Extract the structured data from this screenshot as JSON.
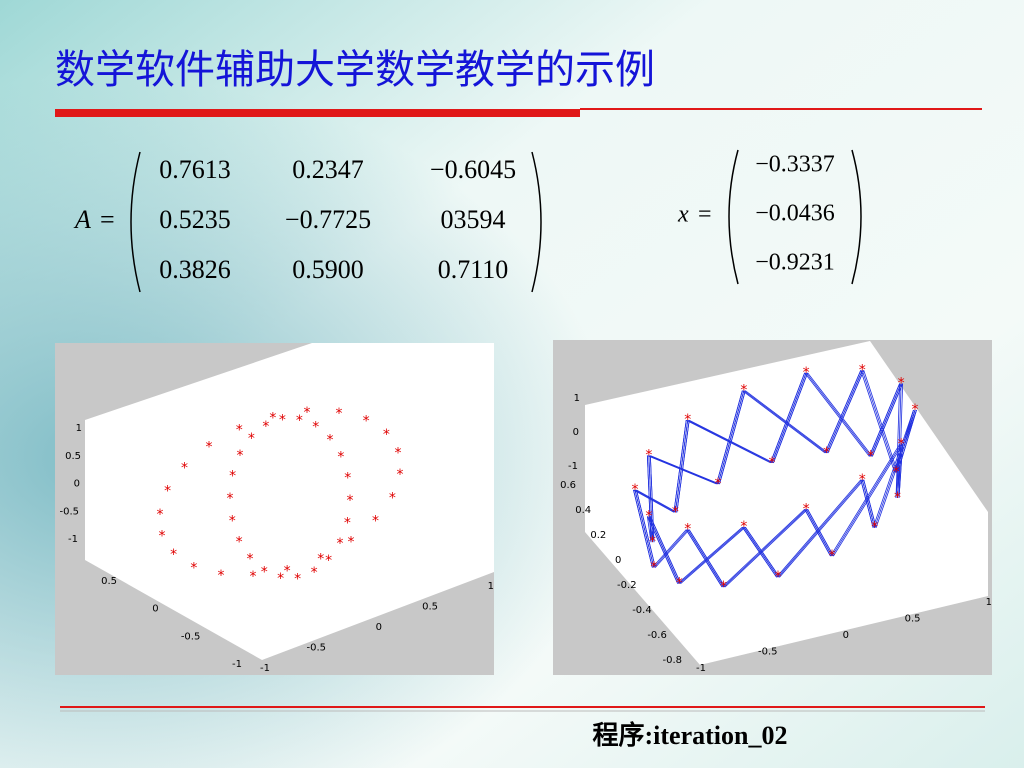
{
  "title": "数学软件辅助大学数学教学的示例",
  "equals": "=",
  "matrix_A": {
    "label": "A",
    "rows": [
      [
        "0.7613",
        "0.2347",
        "−0.6045"
      ],
      [
        "0.5235",
        "−0.7725",
        "03594"
      ],
      [
        "0.3826",
        "0.5900",
        "0.7110"
      ]
    ]
  },
  "vector_x": {
    "label": "x",
    "rows": [
      "−0.3337",
      "−0.0436",
      "−0.9231"
    ]
  },
  "plot_left": {
    "z_ticks": [
      "1",
      "0.5",
      "0",
      "-0.5",
      "-1"
    ],
    "x_ticks": [
      "0.5",
      "0",
      "-0.5",
      "-1"
    ],
    "y_ticks": [
      "-1",
      "-0.5",
      "0",
      "0.5",
      "1"
    ]
  },
  "plot_right": {
    "z_ticks": [
      "1",
      "0",
      "-1"
    ],
    "x_ticks": [
      "0.6",
      "0.4",
      "0.2",
      "0",
      "-0.2",
      "-0.4",
      "-0.6",
      "-0.8"
    ],
    "y_ticks": [
      "-1",
      "-0.5",
      "0",
      "0.5",
      "1"
    ]
  },
  "caption": "程序:iteration_02"
}
